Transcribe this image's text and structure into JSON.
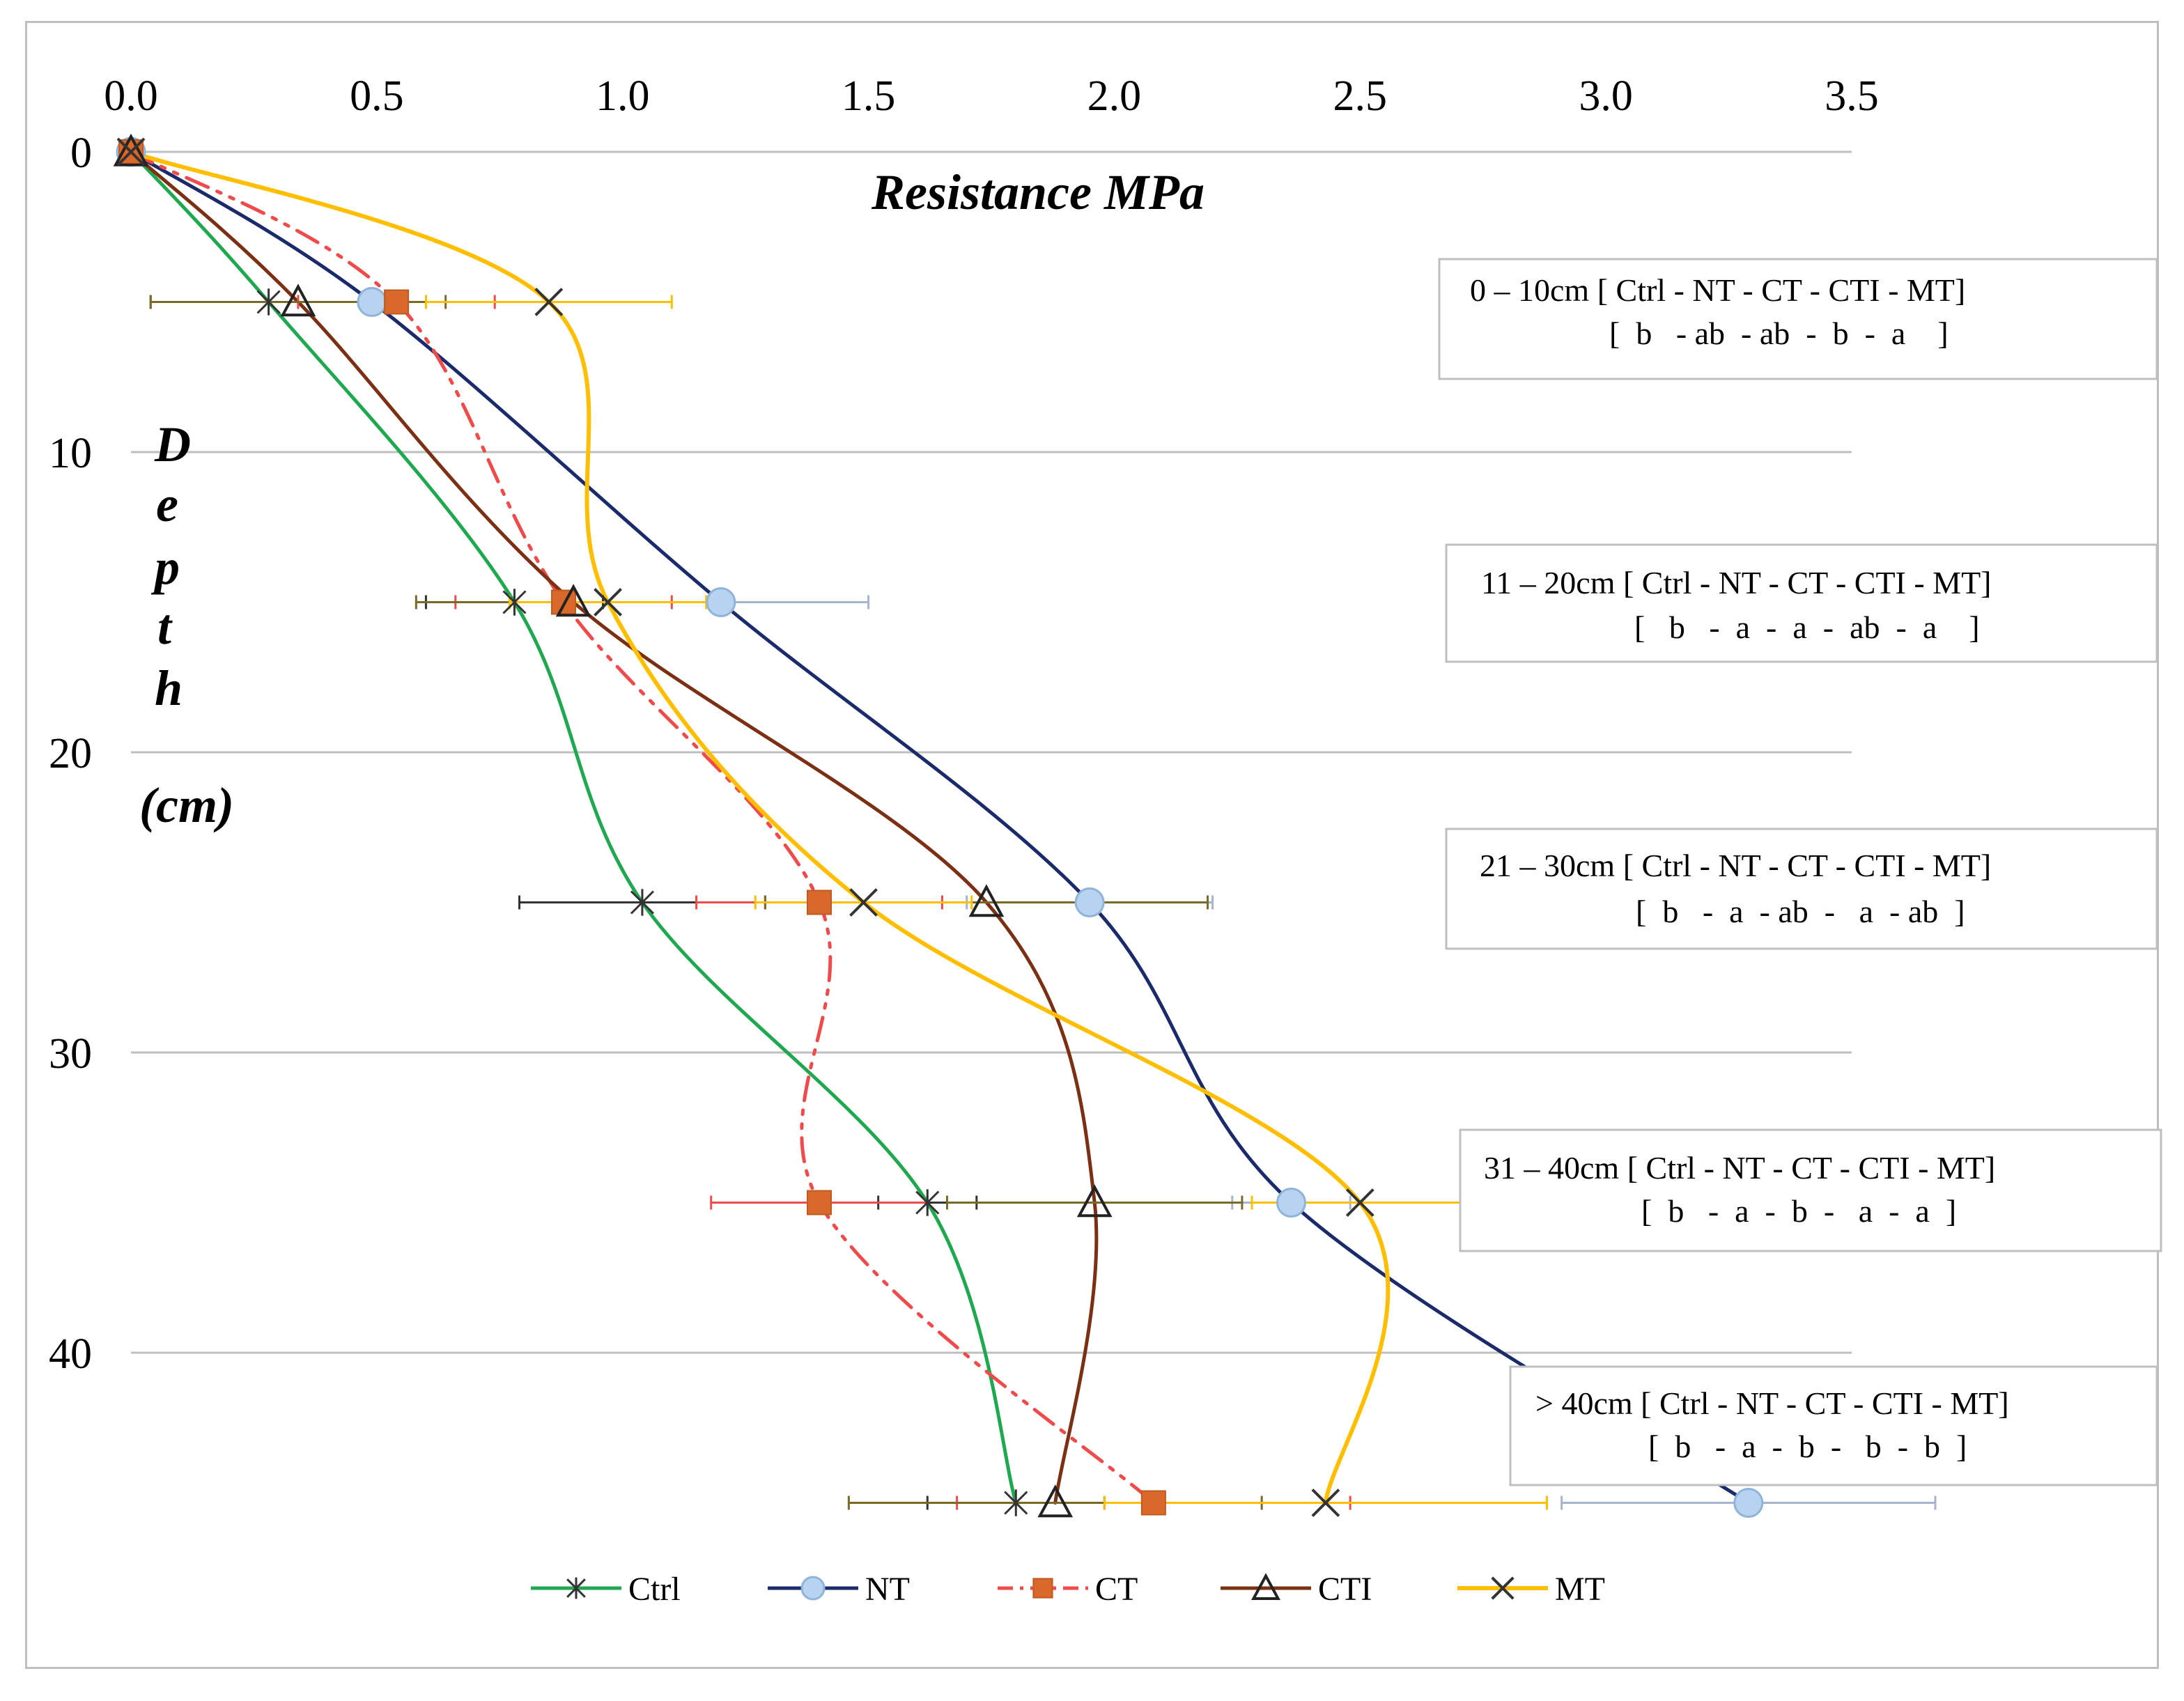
{
  "chart_data": {
    "type": "line",
    "title": "",
    "xlabel": "Resistance MPa",
    "ylabel_letters": [
      "D",
      "e",
      "p",
      "t",
      "h"
    ],
    "ylabel_unit": "(cm)",
    "xlim": [
      0,
      3.5
    ],
    "ylim": [
      0,
      45
    ],
    "x_ticks": [
      "0.0",
      "0.5",
      "1.0",
      "1.5",
      "2.0",
      "2.5",
      "3.0",
      "3.5"
    ],
    "y_ticks": [
      "0",
      "10",
      "20",
      "30",
      "40"
    ],
    "x_axis_position": "top",
    "y_axis_inverted": true,
    "grid": "horizontal",
    "legend_position": "bottom",
    "depths": [
      0,
      5,
      15,
      25,
      35,
      45
    ],
    "series": [
      {
        "name": "Ctrl",
        "color": "#1fa84f",
        "marker": "star",
        "dash": "none",
        "values": [
          0,
          0.28,
          0.78,
          1.04,
          1.62,
          1.8
        ],
        "errors": [
          0,
          0.24,
          0.18,
          0.25,
          0.1,
          0.18
        ]
      },
      {
        "name": "NT",
        "color": "#1b2a6b",
        "marker": "circle",
        "dash": "none",
        "values": [
          0,
          0.49,
          1.2,
          1.95,
          2.36,
          3.29
        ],
        "errors": [
          0,
          0.0,
          0.3,
          0.25,
          0.12,
          0.38
        ]
      },
      {
        "name": "CT",
        "color": "#ef4b4b",
        "marker": "square",
        "dash": "dashdot",
        "values": [
          0,
          0.54,
          0.88,
          1.4,
          1.4,
          2.08
        ],
        "errors": [
          0,
          0.2,
          0.22,
          0.25,
          0.22,
          0.4
        ]
      },
      {
        "name": "CTI",
        "color": "#7b3014",
        "marker": "triangle",
        "dash": "none",
        "values": [
          0,
          0.34,
          0.9,
          1.74,
          1.96,
          1.88
        ],
        "errors": [
          0,
          0.3,
          0.32,
          0.45,
          0.3,
          0.42
        ]
      },
      {
        "name": "MT",
        "color": "#ffbf00",
        "marker": "x",
        "dash": "none",
        "values": [
          0,
          0.85,
          0.97,
          1.49,
          2.5,
          2.43
        ],
        "errors": [
          0,
          0.25,
          0.2,
          0.22,
          0.22,
          0.45
        ]
      }
    ],
    "annotations": [
      {
        "label": "0 – 10cm [ Ctrl - NT - CT - CTI - MT]",
        "letters": "[  b   - ab  - ab  -  b  -  a    ]"
      },
      {
        "label": "11 – 20cm [ Ctrl - NT - CT - CTI - MT]",
        "letters": "[   b   -  a  -  a  -  ab  -  a    ]"
      },
      {
        "label": "21 – 30cm [ Ctrl - NT - CT - CTI - MT]",
        "letters": "[  b   -  a  - ab  -   a  - ab  ]"
      },
      {
        "label": "31 – 40cm [ Ctrl - NT - CT - CTI - MT]",
        "letters": "[  b   -  a  -  b  -   a  -  a  ]"
      },
      {
        "label": "> 40cm [ Ctrl - NT - CT - CTI - MT]",
        "letters": "[  b   -  a  -  b  -   b  -  b  ]"
      }
    ]
  }
}
